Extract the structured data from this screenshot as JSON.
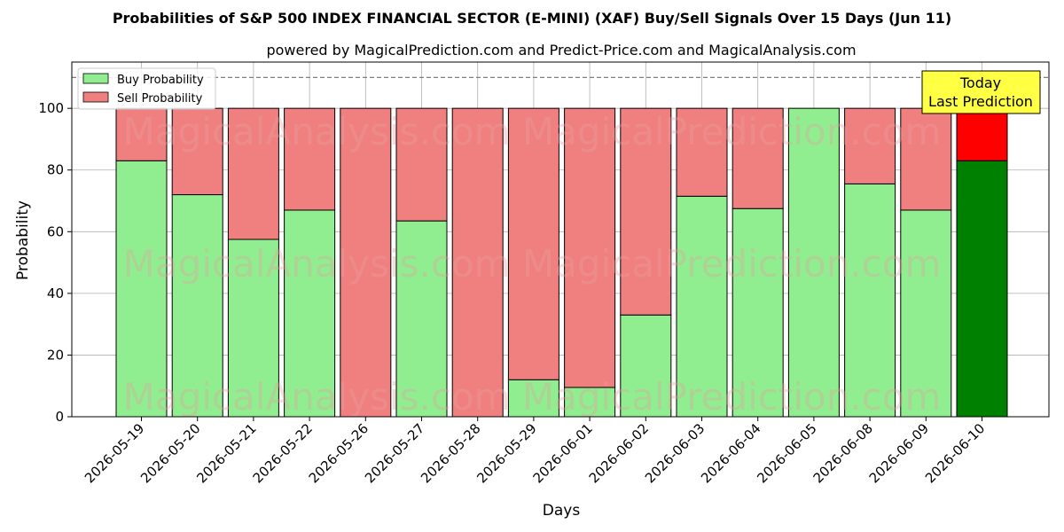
{
  "chart_data": {
    "type": "bar",
    "title": "Probabilities of S&P 500 INDEX FINANCIAL SECTOR (E-MINI) (XAF) Buy/Sell Signals Over 15 Days (Jun 11)",
    "subtitle": "powered by MagicalPrediction.com and Predict-Price.com and MagicalAnalysis.com",
    "xlabel": "Days",
    "ylabel": "Probability",
    "ylim": [
      0,
      115
    ],
    "yticks": [
      0,
      20,
      40,
      60,
      80,
      100
    ],
    "grid": true,
    "legend_placement": "top-left",
    "reference_line": 110,
    "categories": [
      "2026-05-19",
      "2026-05-20",
      "2026-05-21",
      "2026-05-22",
      "2026-05-26",
      "2026-05-27",
      "2026-05-28",
      "2026-05-29",
      "2026-06-01",
      "2026-06-02",
      "2026-06-03",
      "2026-06-04",
      "2026-06-05",
      "2026-06-08",
      "2026-06-09",
      "2026-06-10"
    ],
    "series": [
      {
        "name": "Buy Probability",
        "color": "#90ee90",
        "highlight_color": "#008000",
        "values": [
          83,
          72,
          57.5,
          67,
          0,
          63.5,
          0,
          12,
          9.5,
          33,
          71.5,
          67.5,
          100,
          75.5,
          67,
          83
        ]
      },
      {
        "name": "Sell Probability",
        "color": "#f08080",
        "highlight_color": "#ff0000",
        "values": [
          17,
          28,
          42.5,
          33,
          100,
          36.5,
          100,
          88,
          90.5,
          67,
          28.5,
          32.5,
          0,
          24.5,
          33,
          17
        ]
      }
    ],
    "annotation": {
      "lines": [
        "Today",
        "Last Prediction"
      ],
      "bg_color": "#ffff44"
    },
    "watermark": "MagicalAnalysis.com     MagicalPrediction.com"
  }
}
